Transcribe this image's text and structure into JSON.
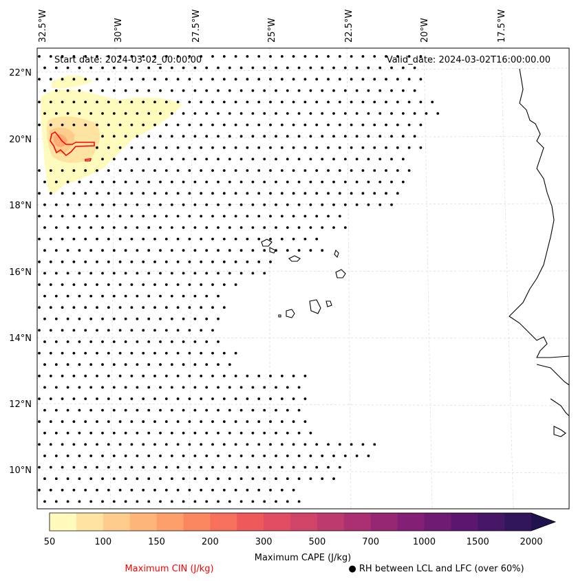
{
  "map": {
    "start_date": "Start date: 2024-03-02_00:00:00",
    "valid_date": "Valid_date: 2024-03-02T16:00:00.00",
    "lon_ticks": [
      "32.5°W",
      "30°W",
      "27.5°W",
      "25°W",
      "22.5°W",
      "20°W",
      "17.5°W"
    ],
    "lat_ticks": [
      "22°N",
      "20°N",
      "18°N",
      "16°N",
      "14°N",
      "12°N",
      "10°N"
    ]
  },
  "colorbar": {
    "title": "Maximum CAPE (J/kg)",
    "tick_labels": [
      "50",
      "100",
      "150",
      "200",
      "300",
      "500",
      "700",
      "1000",
      "1500",
      "2000"
    ],
    "colors": [
      "#fffbbd",
      "#fee3a2",
      "#fecd8d",
      "#feb678",
      "#fd9f6b",
      "#fb8761",
      "#f6705c",
      "#ee5a5c",
      "#e14d62",
      "#d04468",
      "#bd3a6e",
      "#aa3071",
      "#962773",
      "#831f74",
      "#6f1a73",
      "#5b176f",
      "#471767",
      "#32165b",
      "#20124d"
    ]
  },
  "legend": {
    "cin_label": "Maximum CIN (J/kg)",
    "rh_label": "● RH between LCL and LFC (over 60%)",
    "cin_color": "#ff0000"
  }
}
